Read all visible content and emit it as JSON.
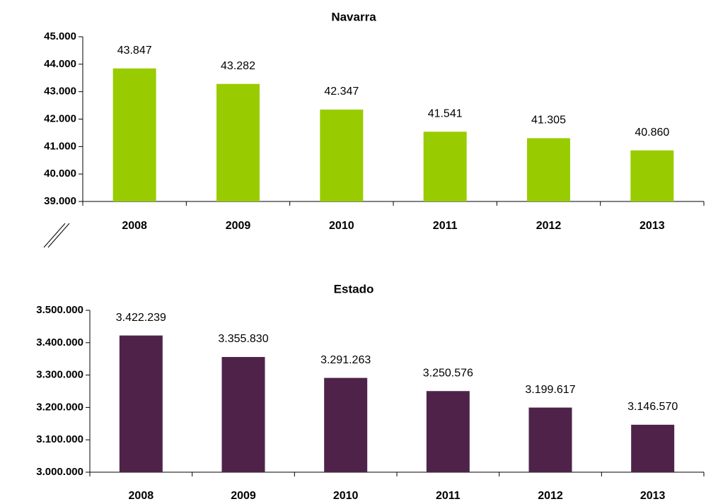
{
  "chart_data": [
    {
      "type": "bar",
      "title": "Navarra",
      "categories": [
        "2008",
        "2009",
        "2010",
        "2011",
        "2012",
        "2013"
      ],
      "values": [
        43847,
        43282,
        42347,
        41541,
        41305,
        40860
      ],
      "value_labels": [
        "43.847",
        "43.282",
        "42.347",
        "41.541",
        "41.305",
        "40.860"
      ],
      "color": "#99cc00",
      "ylim": [
        39000,
        45000
      ],
      "yticks": [
        {
          "value": 39000,
          "label": "39.000"
        },
        {
          "value": 40000,
          "label": "40.000"
        },
        {
          "value": 41000,
          "label": "41.000"
        },
        {
          "value": 42000,
          "label": "42.000"
        },
        {
          "value": 43000,
          "label": "43.000"
        },
        {
          "value": 44000,
          "label": "44.000"
        },
        {
          "value": 45000,
          "label": "45.000"
        }
      ],
      "grid": false
    },
    {
      "type": "bar",
      "title": "Estado",
      "categories": [
        "2008",
        "2009",
        "2010",
        "2011",
        "2012",
        "2013"
      ],
      "values": [
        3422239,
        3355830,
        3291263,
        3250576,
        3199617,
        3146570
      ],
      "value_labels": [
        "3.422.239",
        "3.355.830",
        "3.291.263",
        "3.250.576",
        "3.199.617",
        "3.146.570"
      ],
      "color": "#4f2349",
      "ylim": [
        3000000,
        3500000
      ],
      "yticks": [
        {
          "value": 3000000,
          "label": "3.000.000"
        },
        {
          "value": 3100000,
          "label": "3.100.000"
        },
        {
          "value": 3200000,
          "label": "3.200.000"
        },
        {
          "value": 3300000,
          "label": "3.300.000"
        },
        {
          "value": 3400000,
          "label": "3.400.000"
        },
        {
          "value": 3500000,
          "label": "3.500.000"
        }
      ],
      "grid": false
    }
  ]
}
